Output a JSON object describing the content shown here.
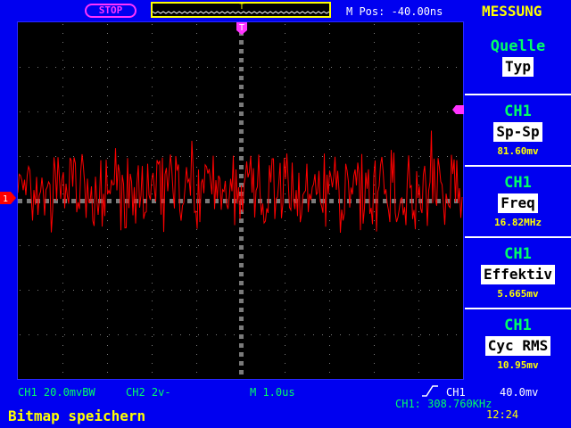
{
  "top": {
    "status": "STOP",
    "m_pos": "M Pos: -40.00ns",
    "menu_title": "MESSUNG"
  },
  "markers": {
    "trigger_position": "T",
    "channel1": "1"
  },
  "panel": {
    "source": {
      "title": "Quelle",
      "box": "Typ"
    },
    "items": [
      {
        "title": "CH1",
        "box": "Sp-Sp",
        "value": "81.60mv"
      },
      {
        "title": "CH1",
        "box": "Freq",
        "value": "16.82MHz"
      },
      {
        "title": "CH1",
        "box": "Effektiv",
        "value": "5.665mv"
      },
      {
        "title": "CH1",
        "box": "Cyc RMS",
        "value": "10.95mv"
      }
    ]
  },
  "status_bar": {
    "ch1": "CH1 20.0mvBW",
    "ch2": "CH2 2v-",
    "timebase": "M 1.0us",
    "trigger_src": "CH1",
    "trigger_level": "40.0mv",
    "frequency": "CH1: 308.760KHz",
    "clock": "12:24",
    "message": "Bitmap speichern"
  },
  "colors": {
    "trace": "#ff0000",
    "background": "#0000f0",
    "text_green": "#00ff66",
    "text_yellow": "#ffff00",
    "marker_magenta": "#ff33ff"
  }
}
